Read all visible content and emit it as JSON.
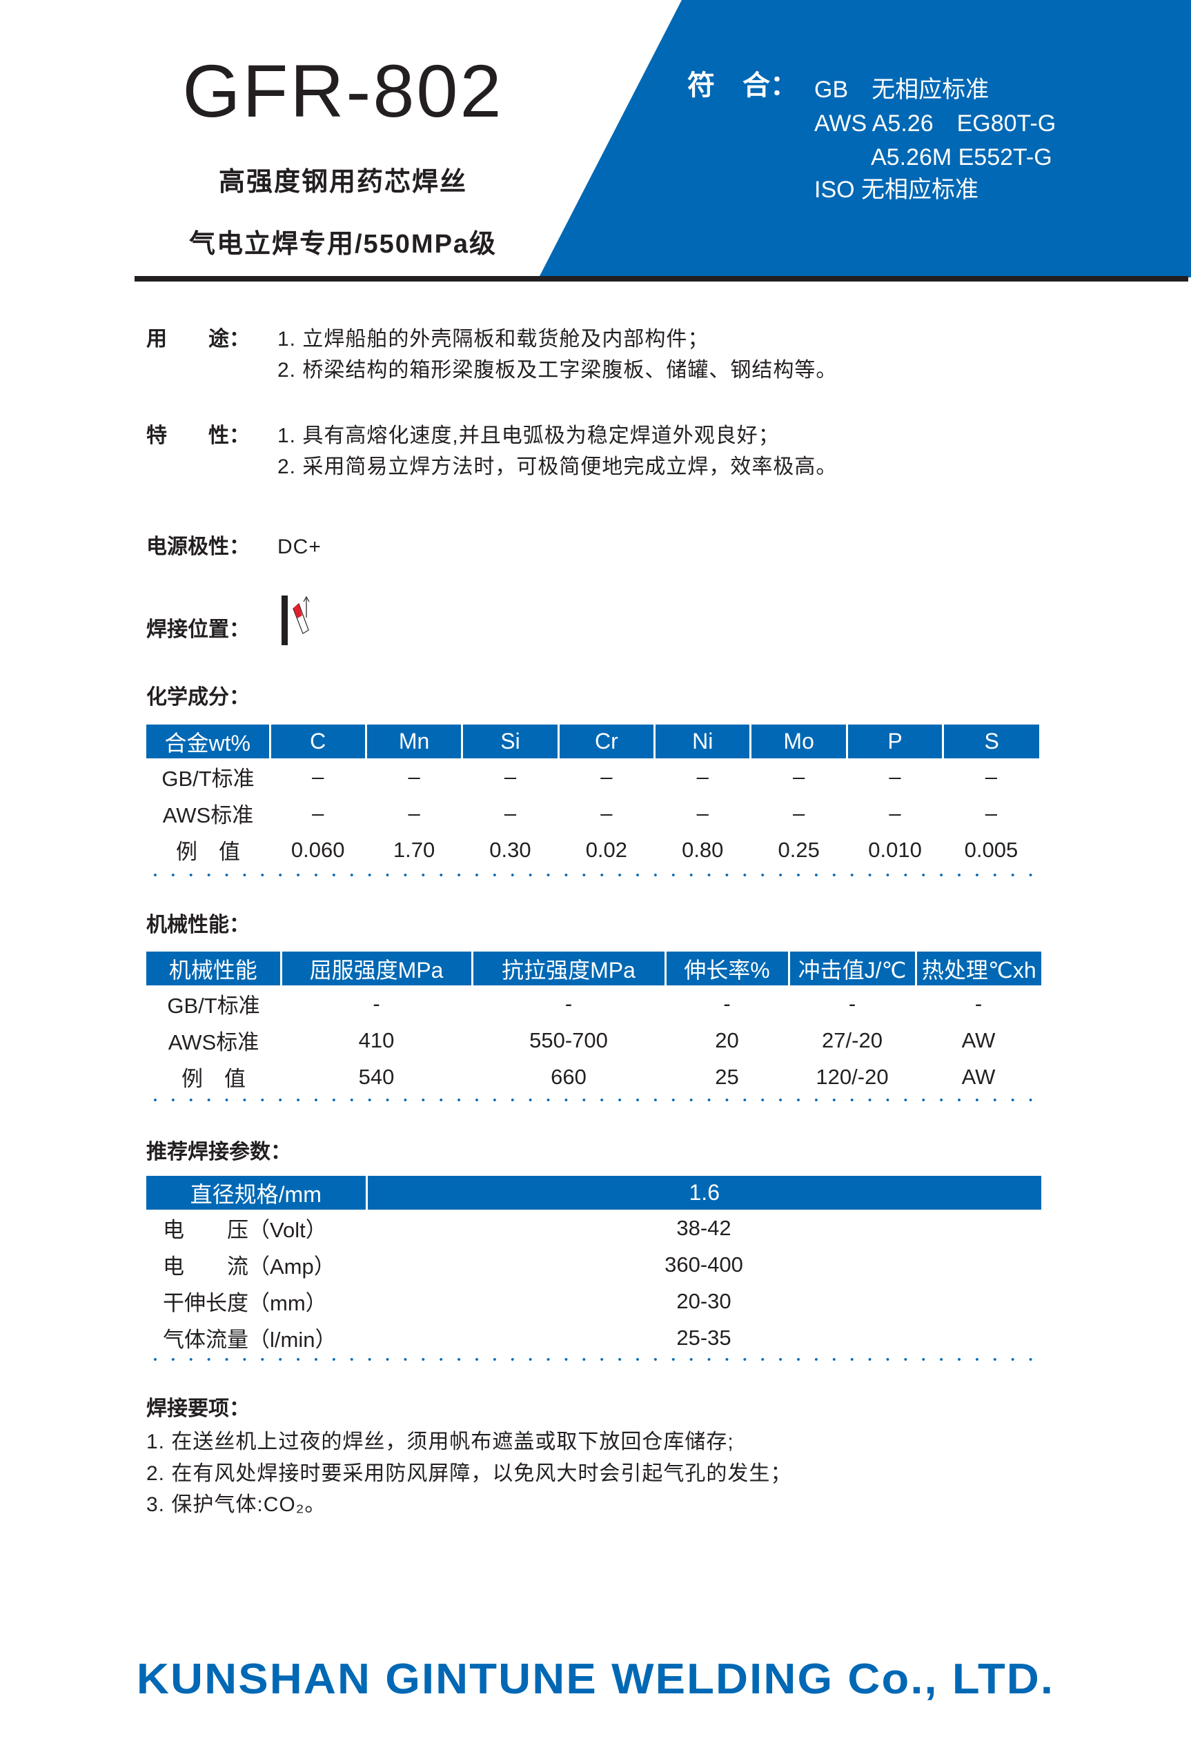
{
  "header": {
    "title": "GFR-802",
    "subtitle1": "高强度钢用药芯焊丝",
    "subtitle2": "气电立焊专用/550MPa级",
    "conforms_label": "符　合：",
    "standards": [
      "GB　无相应标准",
      "AWS A5.26　EG80T-G",
      "A5.26M E552T-G",
      "ISO  无相应标准"
    ]
  },
  "usage": {
    "label": "用　　途：",
    "items": [
      "1. 立焊船舶的外壳隔板和载货舱及内部构件；",
      "2. 桥梁结构的箱形梁腹板及工字梁腹板、储罐、钢结构等。"
    ]
  },
  "features": {
    "label": "特　　性：",
    "items": [
      "1. 具有高熔化速度,并且电弧极为稳定焊道外观良好；",
      "2. 采用简易立焊方法时，可极简便地完成立焊，效率极高。"
    ]
  },
  "polarity": {
    "label": "电源极性：",
    "value": "DC+"
  },
  "position": {
    "label": "焊接位置：",
    "icon": "vertical-up-welding-icon"
  },
  "chemical": {
    "label": "化学成分：",
    "headers": [
      "合金wt%",
      "C",
      "Mn",
      "Si",
      "Cr",
      "Ni",
      "Mo",
      "P",
      "S"
    ],
    "rows": [
      [
        "GB/T标准",
        "–",
        "–",
        "–",
        "–",
        "–",
        "–",
        "–",
        "–"
      ],
      [
        "AWS标准",
        "–",
        "–",
        "–",
        "–",
        "–",
        "–",
        "–",
        "–"
      ],
      [
        "例　值",
        "0.060",
        "1.70",
        "0.30",
        "0.02",
        "0.80",
        "0.25",
        "0.010",
        "0.005"
      ]
    ]
  },
  "mechanical": {
    "label": "机械性能：",
    "headers": [
      "机械性能",
      "屈服强度MPa",
      "抗拉强度MPa",
      "伸长率%",
      "冲击值J/℃",
      "热处理℃xh"
    ],
    "rows": [
      [
        "GB/T标准",
        "-",
        "-",
        "-",
        "-",
        "-"
      ],
      [
        "AWS标准",
        "410",
        "550-700",
        "20",
        "27/-20",
        "AW"
      ],
      [
        "例　值",
        "540",
        "660",
        "25",
        "120/-20",
        "AW"
      ]
    ]
  },
  "params": {
    "label": "推荐焊接参数：",
    "headers": [
      "直径规格/mm",
      "1.6"
    ],
    "rows": [
      [
        "电　　压（Volt）",
        "38-42"
      ],
      [
        "电　　流（Amp）",
        "360-400"
      ],
      [
        "干伸长度（mm）",
        "20-30"
      ],
      [
        "气体流量（l/min）",
        "25-35"
      ]
    ]
  },
  "notes": {
    "label": "焊接要项：",
    "items": [
      "1. 在送丝机上过夜的焊丝，须用帆布遮盖或取下放回仓库储存;",
      "2. 在有风处焊接时要采用防风屏障，以免风大时会引起气孔的发生；",
      "3. 保护气体:CO₂。"
    ]
  },
  "footer": {
    "company": "KUNSHAN  GINTUNE  WELDING  Co., LTD."
  },
  "colors": {
    "brand_blue": "#0068b4",
    "text": "#231f20",
    "torch_tip": "#e31e2d"
  }
}
